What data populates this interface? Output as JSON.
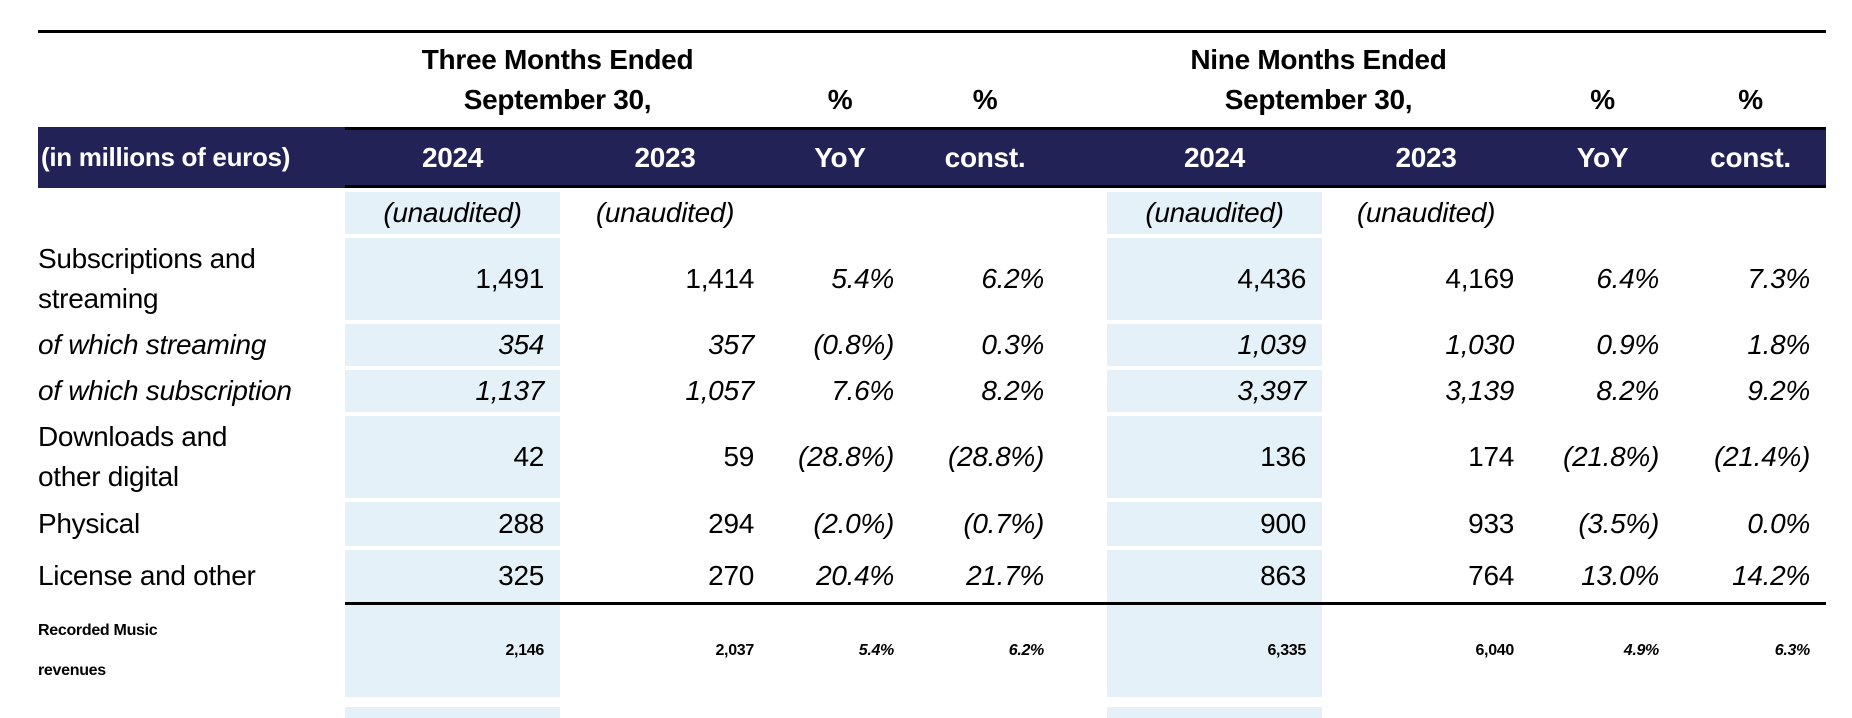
{
  "table": {
    "unit_label": "(in millions of euros)",
    "unaudited": "(unaudited)",
    "pct_symbol": "%",
    "groups": [
      {
        "line1": "Three Months Ended",
        "line2": "September 30,"
      },
      {
        "line1": "Nine Months Ended",
        "line2": "September 30,"
      }
    ],
    "columns": [
      "2024",
      "2023",
      "YoY",
      "const.",
      "2024",
      "2023",
      "YoY",
      "const."
    ],
    "rows": [
      {
        "lines": [
          "Subscriptions and",
          "streaming"
        ],
        "style": "normal",
        "values": [
          "1,491",
          "1,414",
          "5.4%",
          "6.2%",
          "4,436",
          "4,169",
          "6.4%",
          "7.3%"
        ]
      },
      {
        "lines": [
          "of which streaming"
        ],
        "style": "italic",
        "values": [
          "354",
          "357",
          "(0.8%)",
          "0.3%",
          "1,039",
          "1,030",
          "0.9%",
          "1.8%"
        ]
      },
      {
        "lines": [
          "of which subscription"
        ],
        "style": "italic",
        "values": [
          "1,137",
          "1,057",
          "7.6%",
          "8.2%",
          "3,397",
          "3,139",
          "8.2%",
          "9.2%"
        ]
      },
      {
        "lines": [
          "Downloads and",
          "other digital"
        ],
        "style": "normal",
        "values": [
          "42",
          "59",
          "(28.8%)",
          "(28.8%)",
          "136",
          "174",
          "(21.8%)",
          "(21.4%)"
        ]
      },
      {
        "lines": [
          "Physical"
        ],
        "style": "normal",
        "values": [
          "288",
          "294",
          "(2.0%)",
          "(0.7%)",
          "900",
          "933",
          "(3.5%)",
          "0.0%"
        ]
      },
      {
        "lines": [
          "License and other"
        ],
        "style": "normal",
        "values": [
          "325",
          "270",
          "20.4%",
          "21.7%",
          "863",
          "764",
          "13.0%",
          "14.2%"
        ]
      },
      {
        "lines": [
          "Recorded Music",
          "revenues"
        ],
        "style": "total",
        "values": [
          "2,146",
          "2,037",
          "5.4%",
          "6.2%",
          "6,335",
          "6,040",
          "4.9%",
          "6.3%"
        ]
      }
    ],
    "colors": {
      "header_navy": "#232256",
      "highlight_blue": "#e4f1f8"
    }
  }
}
